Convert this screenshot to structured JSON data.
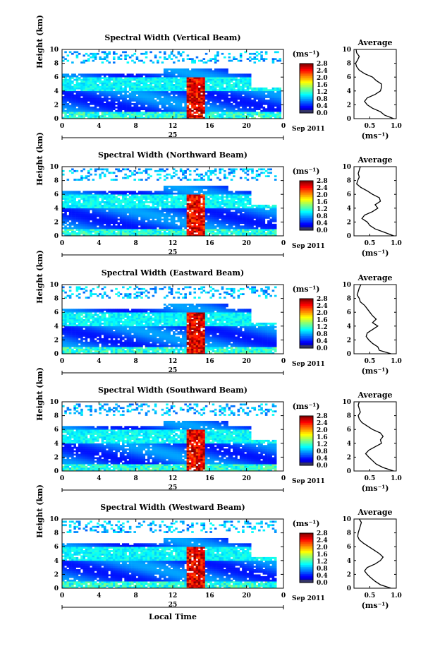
{
  "chart_data": [
    {
      "type": "heatmap",
      "title": "Spectral Width (Vertical Beam)",
      "ylabel": "Height (km)",
      "xlabel": "",
      "y_ticks": [
        "0",
        "2",
        "4",
        "6",
        "8",
        "10"
      ],
      "x_ticks": [
        "0",
        "4",
        "8",
        "12",
        "16",
        "20",
        "0"
      ],
      "date_day": "25",
      "date_month_year": "Sep 2011",
      "xlim": [
        0,
        24
      ],
      "ylim": [
        0,
        10
      ],
      "colorbar_unit": "(ms⁻¹)",
      "colorbar_ticks": [
        "0.0",
        "0.4",
        "0.8",
        "1.2",
        "1.6",
        "2.0",
        "2.4",
        "2.8"
      ],
      "colorbar_range": [
        0,
        2.8
      ],
      "average": {
        "title": "Average",
        "xlabel": "(ms⁻¹)",
        "x_ticks": [
          "0.5",
          "1.0"
        ],
        "xlim": [
          0.2,
          1.0
        ],
        "ylim": [
          0,
          10
        ],
        "y_ticks": [
          "0",
          "2",
          "4",
          "6",
          "8",
          "10"
        ],
        "height_km": [
          0.0,
          0.5,
          1.0,
          1.5,
          2.0,
          2.5,
          3.0,
          3.5,
          4.0,
          4.5,
          5.0,
          5.5,
          6.0,
          6.5,
          7.0,
          7.5,
          8.0,
          8.5,
          9.0,
          9.5,
          10.0
        ],
        "width_ms": [
          0.95,
          0.78,
          0.7,
          0.55,
          0.45,
          0.4,
          0.45,
          0.6,
          0.7,
          0.72,
          0.72,
          0.62,
          0.55,
          0.4,
          0.3,
          0.25,
          0.23,
          0.27,
          0.3,
          0.25,
          0.24
        ]
      }
    },
    {
      "type": "heatmap",
      "title": "Spectral Width (Northward Beam)",
      "ylabel": "Height (km)",
      "xlabel": "",
      "y_ticks": [
        "0",
        "2",
        "4",
        "6",
        "8",
        "10"
      ],
      "x_ticks": [
        "0",
        "4",
        "8",
        "12",
        "16",
        "20",
        "0"
      ],
      "date_day": "25",
      "date_month_year": "Sep 2011",
      "xlim": [
        0,
        24
      ],
      "ylim": [
        0,
        10
      ],
      "colorbar_unit": "(ms⁻¹)",
      "colorbar_ticks": [
        "0.0",
        "0.4",
        "0.8",
        "1.2",
        "1.6",
        "2.0",
        "2.4",
        "2.8"
      ],
      "colorbar_range": [
        0,
        2.8
      ],
      "average": {
        "title": "Average",
        "xlabel": "(ms⁻¹)",
        "x_ticks": [
          "0.5",
          "1.0"
        ],
        "xlim": [
          0.2,
          1.0
        ],
        "ylim": [
          0,
          10
        ],
        "y_ticks": [
          "0",
          "2",
          "4",
          "6",
          "8",
          "10"
        ],
        "height_km": [
          0.0,
          0.5,
          1.0,
          1.5,
          2.0,
          2.5,
          3.0,
          3.5,
          4.0,
          4.5,
          5.0,
          5.5,
          6.0,
          6.5,
          7.0,
          7.5,
          8.0,
          8.5,
          9.0,
          9.5,
          10.0
        ],
        "width_ms": [
          0.95,
          0.78,
          0.6,
          0.5,
          0.45,
          0.35,
          0.4,
          0.55,
          0.65,
          0.6,
          0.7,
          0.68,
          0.55,
          0.45,
          0.33,
          0.25,
          0.27,
          0.3,
          0.28,
          0.3,
          0.32
        ]
      }
    },
    {
      "type": "heatmap",
      "title": "Spectral Width (Eastward Beam)",
      "ylabel": "Height (km)",
      "xlabel": "",
      "y_ticks": [
        "0",
        "2",
        "4",
        "6",
        "8",
        "10"
      ],
      "x_ticks": [
        "0",
        "4",
        "8",
        "12",
        "16",
        "20",
        "0"
      ],
      "date_day": "25",
      "date_month_year": "Sep 2011",
      "xlim": [
        0,
        24
      ],
      "ylim": [
        0,
        10
      ],
      "colorbar_unit": "(ms⁻¹)",
      "colorbar_ticks": [
        "0.0",
        "0.4",
        "0.8",
        "1.2",
        "1.6",
        "2.0",
        "2.4",
        "2.8"
      ],
      "colorbar_range": [
        0,
        2.8
      ],
      "average": {
        "title": "Average",
        "xlabel": "(ms⁻¹)",
        "x_ticks": [
          "0.5",
          "1.0"
        ],
        "xlim": [
          0.2,
          1.0
        ],
        "ylim": [
          0,
          10
        ],
        "y_ticks": [
          "0",
          "2",
          "4",
          "6",
          "8",
          "10"
        ],
        "height_km": [
          0.0,
          0.5,
          1.0,
          1.5,
          2.0,
          2.5,
          3.0,
          3.5,
          4.0,
          4.5,
          5.0,
          5.5,
          6.0,
          6.5,
          7.0,
          7.5,
          8.0,
          8.5,
          9.0,
          9.5,
          10.0
        ],
        "width_ms": [
          0.9,
          0.68,
          0.65,
          0.55,
          0.48,
          0.43,
          0.45,
          0.55,
          0.65,
          0.55,
          0.62,
          0.55,
          0.5,
          0.45,
          0.4,
          0.32,
          0.3,
          0.26,
          0.28,
          0.3,
          0.33
        ]
      }
    },
    {
      "type": "heatmap",
      "title": "Spectral Width (Southward Beam)",
      "ylabel": "Height (km)",
      "xlabel": "",
      "y_ticks": [
        "0",
        "2",
        "4",
        "6",
        "8",
        "10"
      ],
      "x_ticks": [
        "0",
        "4",
        "8",
        "12",
        "16",
        "20",
        "0"
      ],
      "date_day": "25",
      "date_month_year": "Sep 2011",
      "xlim": [
        0,
        24
      ],
      "ylim": [
        0,
        10
      ],
      "colorbar_unit": "(ms⁻¹)",
      "colorbar_ticks": [
        "0.0",
        "0.4",
        "0.8",
        "1.2",
        "1.6",
        "2.0",
        "2.4",
        "2.8"
      ],
      "colorbar_range": [
        0,
        2.8
      ],
      "average": {
        "title": "Average",
        "xlabel": "(ms⁻¹)",
        "x_ticks": [
          "0.5",
          "1.0"
        ],
        "xlim": [
          0.2,
          1.0
        ],
        "ylim": [
          0,
          10
        ],
        "y_ticks": [
          "0",
          "2",
          "4",
          "6",
          "8",
          "10"
        ],
        "height_km": [
          0.0,
          0.5,
          1.0,
          1.5,
          2.0,
          2.5,
          3.0,
          3.5,
          4.0,
          4.5,
          5.0,
          5.5,
          6.0,
          6.5,
          7.0,
          7.5,
          8.0,
          8.5,
          9.0,
          9.5,
          10.0
        ],
        "width_ms": [
          0.95,
          0.75,
          0.62,
          0.55,
          0.48,
          0.42,
          0.48,
          0.6,
          0.72,
          0.7,
          0.75,
          0.7,
          0.55,
          0.45,
          0.35,
          0.3,
          0.28,
          0.32,
          0.3,
          0.28,
          0.3
        ]
      }
    },
    {
      "type": "heatmap",
      "title": "Spectral Width (Westward Beam)",
      "ylabel": "Height (km)",
      "xlabel": "Local Time",
      "y_ticks": [
        "0",
        "2",
        "4",
        "6",
        "8",
        "10"
      ],
      "x_ticks": [
        "0",
        "4",
        "8",
        "12",
        "16",
        "20",
        "0"
      ],
      "date_day": "25",
      "date_month_year": "Sep 2011",
      "xlim": [
        0,
        24
      ],
      "ylim": [
        0,
        10
      ],
      "colorbar_unit": "(ms⁻¹)",
      "colorbar_ticks": [
        "0.0",
        "0.4",
        "0.8",
        "1.2",
        "1.6",
        "2.0",
        "2.4",
        "2.8"
      ],
      "colorbar_range": [
        0,
        2.8
      ],
      "average": {
        "title": "Average",
        "xlabel": "(ms⁻¹)",
        "x_ticks": [
          "0.5",
          "1.0"
        ],
        "xlim": [
          0.2,
          1.0
        ],
        "ylim": [
          0,
          10
        ],
        "y_ticks": [
          "0",
          "2",
          "4",
          "6",
          "8",
          "10"
        ],
        "height_km": [
          0.0,
          0.5,
          1.0,
          1.5,
          2.0,
          2.5,
          3.0,
          3.5,
          4.0,
          4.5,
          5.0,
          5.5,
          6.0,
          6.5,
          7.0,
          7.5,
          8.0,
          8.5,
          9.0,
          9.5,
          10.0
        ],
        "width_ms": [
          0.9,
          0.7,
          0.6,
          0.52,
          0.45,
          0.4,
          0.45,
          0.6,
          0.7,
          0.75,
          0.68,
          0.58,
          0.48,
          0.38,
          0.3,
          0.27,
          0.28,
          0.3,
          0.32,
          0.34,
          0.3
        ]
      }
    }
  ]
}
